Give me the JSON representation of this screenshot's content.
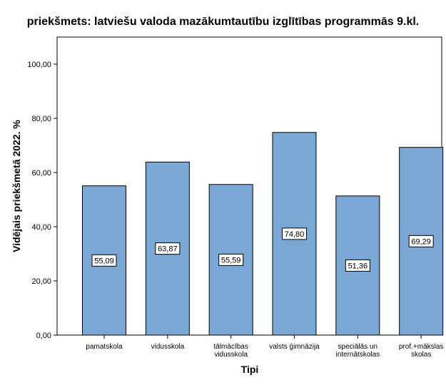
{
  "chart_data": {
    "type": "bar",
    "title": "priekšmets: latviešu valoda mazākumtautību izglītības programmās 9.kl.",
    "xlabel": "Tipi",
    "ylabel": "Vidējais priekšmetā 2022. %",
    "ylim": [
      0,
      110
    ],
    "yticks": [
      "0,00",
      "20,00",
      "40,00",
      "60,00",
      "80,00",
      "100,00"
    ],
    "ytick_values": [
      0,
      20,
      40,
      60,
      80,
      100
    ],
    "categories": [
      [
        "pamatskola"
      ],
      [
        "vidusskola"
      ],
      [
        "tālmācības",
        "vidusskola"
      ],
      [
        "valsts ģimnāzija"
      ],
      [
        "speciālās un",
        "internātskolas"
      ],
      [
        "prof.+mākslas",
        "skolas"
      ]
    ],
    "values": [
      55.09,
      63.87,
      55.59,
      74.8,
      51.36,
      69.29
    ],
    "value_labels": [
      "55,09",
      "63,87",
      "55,59",
      "74,80",
      "51,36",
      "69,29"
    ],
    "bar_color": "#7ba7d4",
    "grid": false,
    "legend": "none"
  }
}
